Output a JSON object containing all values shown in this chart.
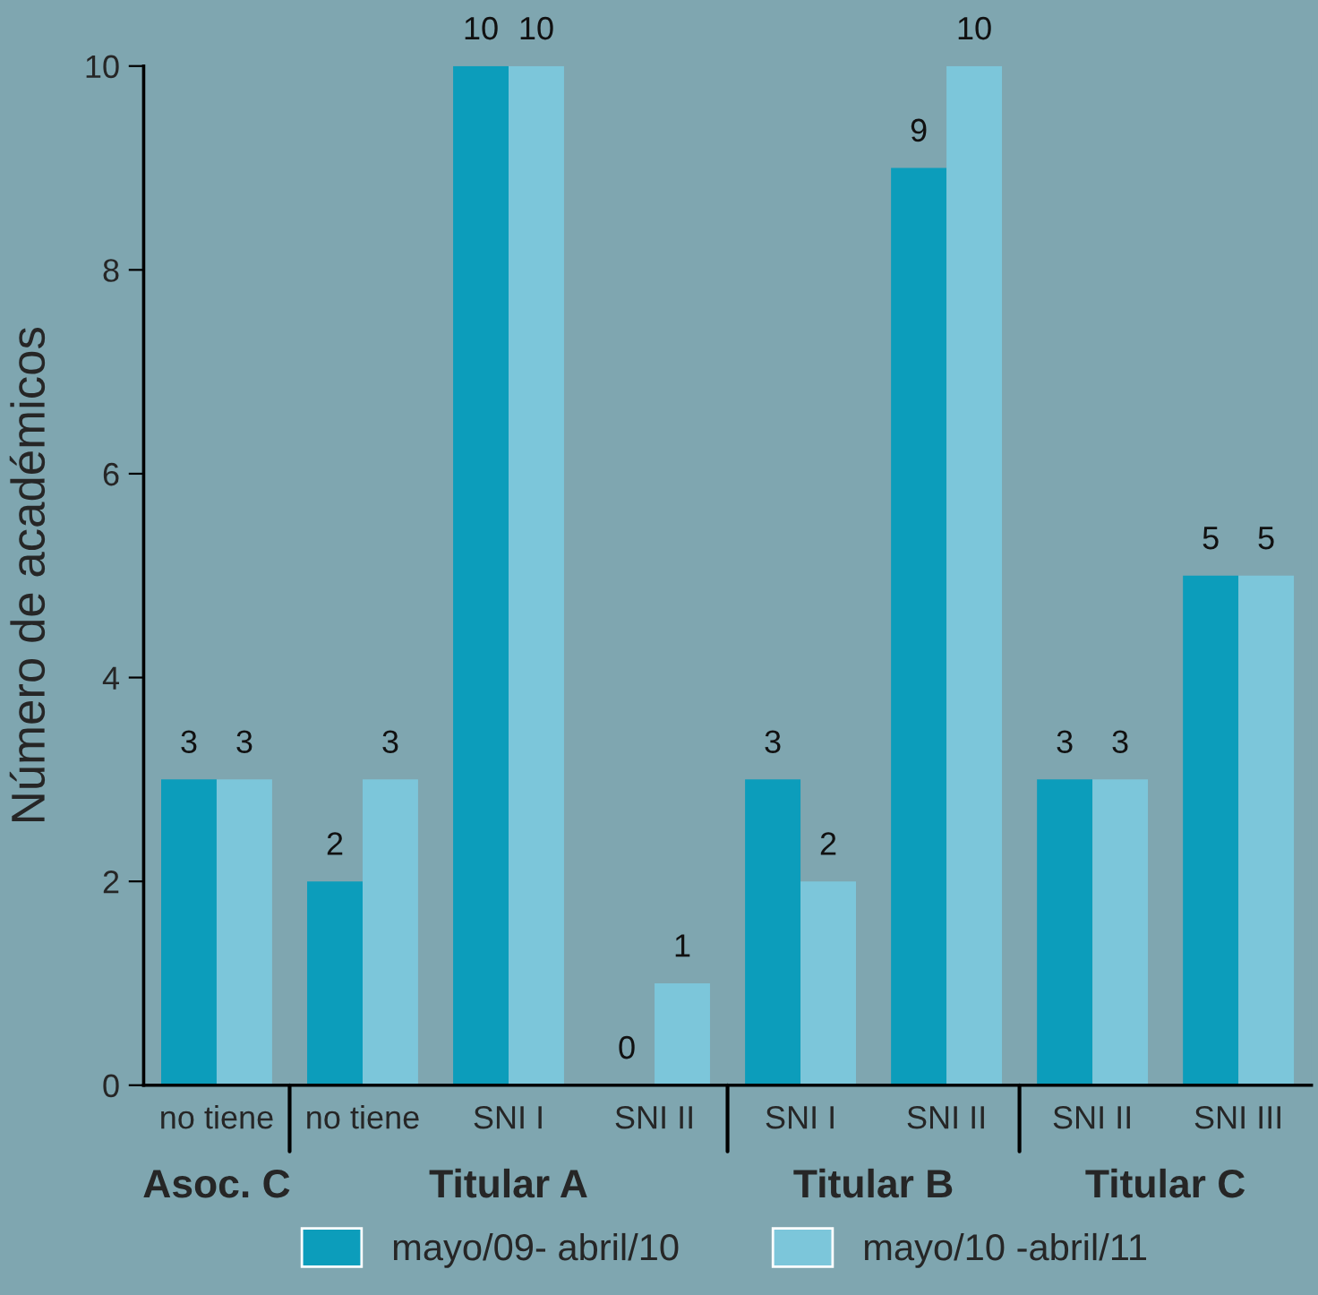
{
  "chart_data": {
    "type": "bar",
    "ylabel": "Número de académicos",
    "categories": [
      "no tiene",
      "no tiene",
      "SNI I",
      "SNI II",
      "SNI I",
      "SNI II",
      "SNI II",
      "SNI III"
    ],
    "series": [
      {
        "name": "mayo/09- abril/10",
        "color": "#0c9dbb",
        "values": [
          3,
          2,
          10,
          0,
          3,
          9,
          3,
          5
        ]
      },
      {
        "name": "mayo/10 -abril/11",
        "color": "#7cc6da",
        "values": [
          3,
          3,
          10,
          1,
          2,
          10,
          3,
          5
        ]
      }
    ],
    "annotations": [
      "Asoc. C",
      "Titular A",
      "Titular B",
      "Titular C"
    ],
    "ylim": [
      0,
      10
    ],
    "yticks": [
      0,
      2,
      4,
      6,
      8,
      10
    ],
    "data_labels": true,
    "legend": "bottom",
    "grid": false
  }
}
